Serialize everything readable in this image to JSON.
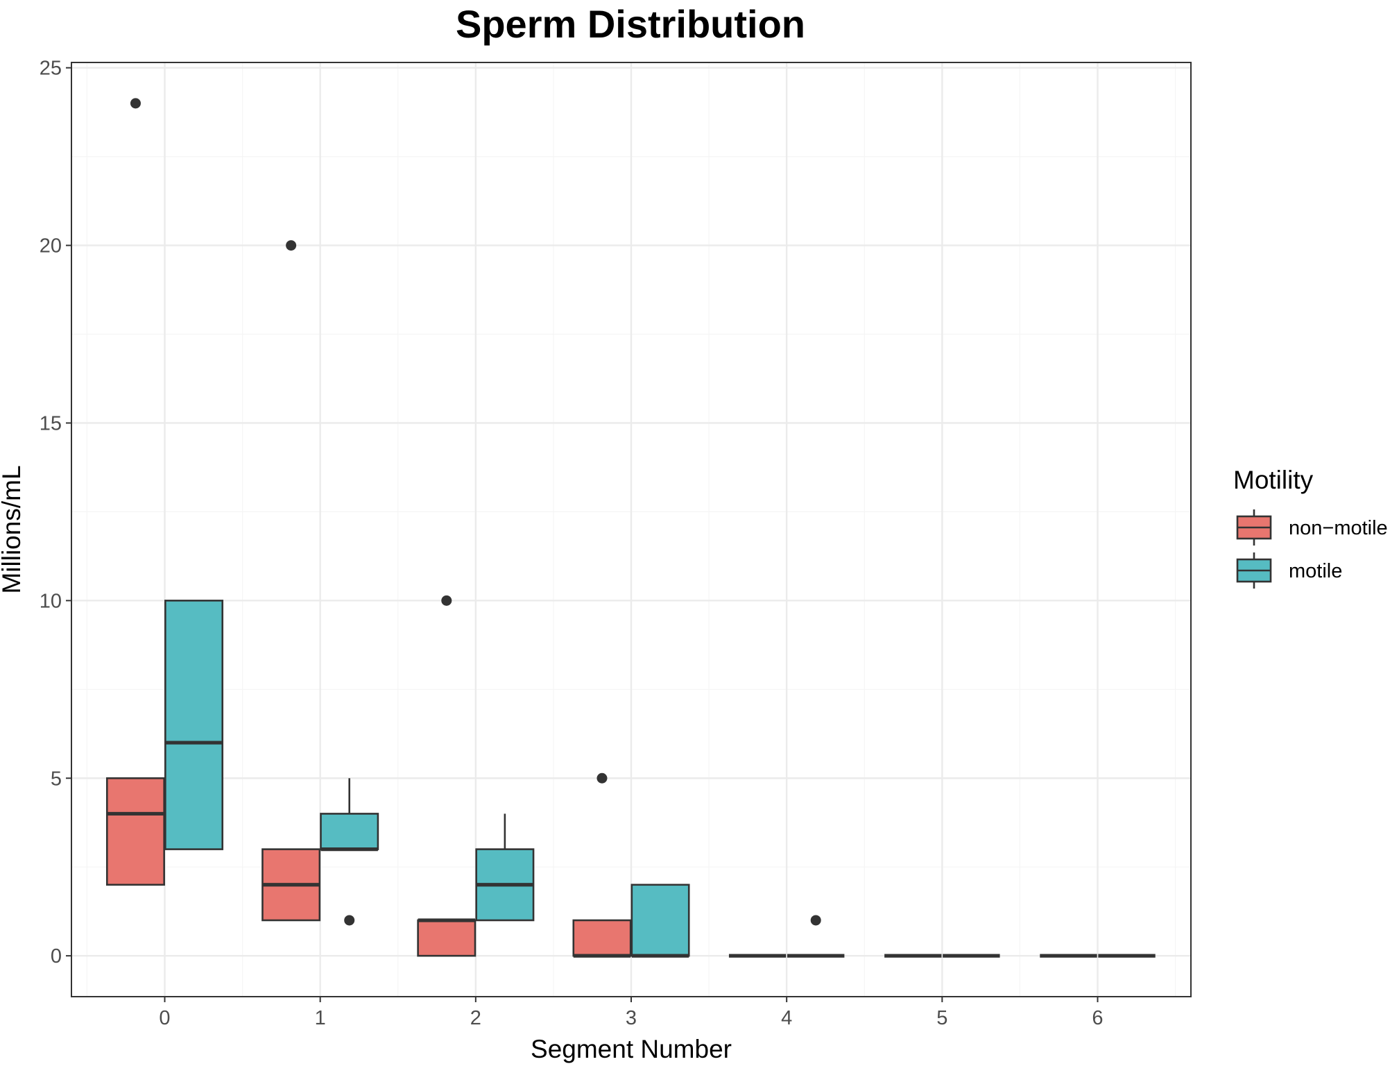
{
  "chart_data": {
    "type": "boxplot",
    "title": "Sperm Distribution",
    "xlabel": "Segment Number",
    "ylabel": "Millions/mL",
    "categories": [
      "0",
      "1",
      "2",
      "3",
      "4",
      "5",
      "6"
    ],
    "ylim": [
      -1.15,
      25.15
    ],
    "yticks": [
      0,
      5,
      10,
      15,
      20,
      25
    ],
    "grid": true,
    "legend": {
      "title": "Motility",
      "placement": "right",
      "entries": [
        "non−motile",
        "motile"
      ]
    },
    "series": [
      {
        "name": "non−motile",
        "color": "#E8766F",
        "boxes": [
          {
            "x": "0",
            "whisker_low": 2,
            "q1": 2,
            "median": 4,
            "q3": 5,
            "whisker_high": 5,
            "outliers": [
              24
            ]
          },
          {
            "x": "1",
            "whisker_low": 1,
            "q1": 1,
            "median": 2,
            "q3": 3,
            "whisker_high": 3,
            "outliers": [
              20
            ]
          },
          {
            "x": "2",
            "whisker_low": 0,
            "q1": 0,
            "median": 1,
            "q3": 1,
            "whisker_high": 1,
            "outliers": [
              10
            ]
          },
          {
            "x": "3",
            "whisker_low": 0,
            "q1": 0,
            "median": 0,
            "q3": 1,
            "whisker_high": 1,
            "outliers": [
              5
            ]
          },
          {
            "x": "4",
            "whisker_low": 0,
            "q1": 0,
            "median": 0,
            "q3": 0,
            "whisker_high": 0,
            "outliers": []
          },
          {
            "x": "5",
            "whisker_low": 0,
            "q1": 0,
            "median": 0,
            "q3": 0,
            "whisker_high": 0,
            "outliers": []
          },
          {
            "x": "6",
            "whisker_low": 0,
            "q1": 0,
            "median": 0,
            "q3": 0,
            "whisker_high": 0,
            "outliers": []
          }
        ]
      },
      {
        "name": "motile",
        "color": "#56BCC2",
        "boxes": [
          {
            "x": "0",
            "whisker_low": 3,
            "q1": 3,
            "median": 6,
            "q3": 10,
            "whisker_high": 10,
            "outliers": []
          },
          {
            "x": "1",
            "whisker_low": 3,
            "q1": 3,
            "median": 3,
            "q3": 4,
            "whisker_high": 5,
            "outliers": [
              1
            ]
          },
          {
            "x": "2",
            "whisker_low": 1,
            "q1": 1,
            "median": 2,
            "q3": 3,
            "whisker_high": 4,
            "outliers": []
          },
          {
            "x": "3",
            "whisker_low": 0,
            "q1": 0,
            "median": 0,
            "q3": 2,
            "whisker_high": 2,
            "outliers": []
          },
          {
            "x": "4",
            "whisker_low": 0,
            "q1": 0,
            "median": 0,
            "q3": 0,
            "whisker_high": 0,
            "outliers": [
              1
            ]
          },
          {
            "x": "5",
            "whisker_low": 0,
            "q1": 0,
            "median": 0,
            "q3": 0,
            "whisker_high": 0,
            "outliers": []
          },
          {
            "x": "6",
            "whisker_low": 0,
            "q1": 0,
            "median": 0,
            "q3": 0,
            "whisker_high": 0,
            "outliers": []
          }
        ]
      }
    ],
    "colors": {
      "panel_border": "#333333",
      "grid_major": "#EBEBEB",
      "grid_minor": "#F5F5F5",
      "box_outline": "#333333",
      "tick_text": "#4d4d4d"
    }
  }
}
